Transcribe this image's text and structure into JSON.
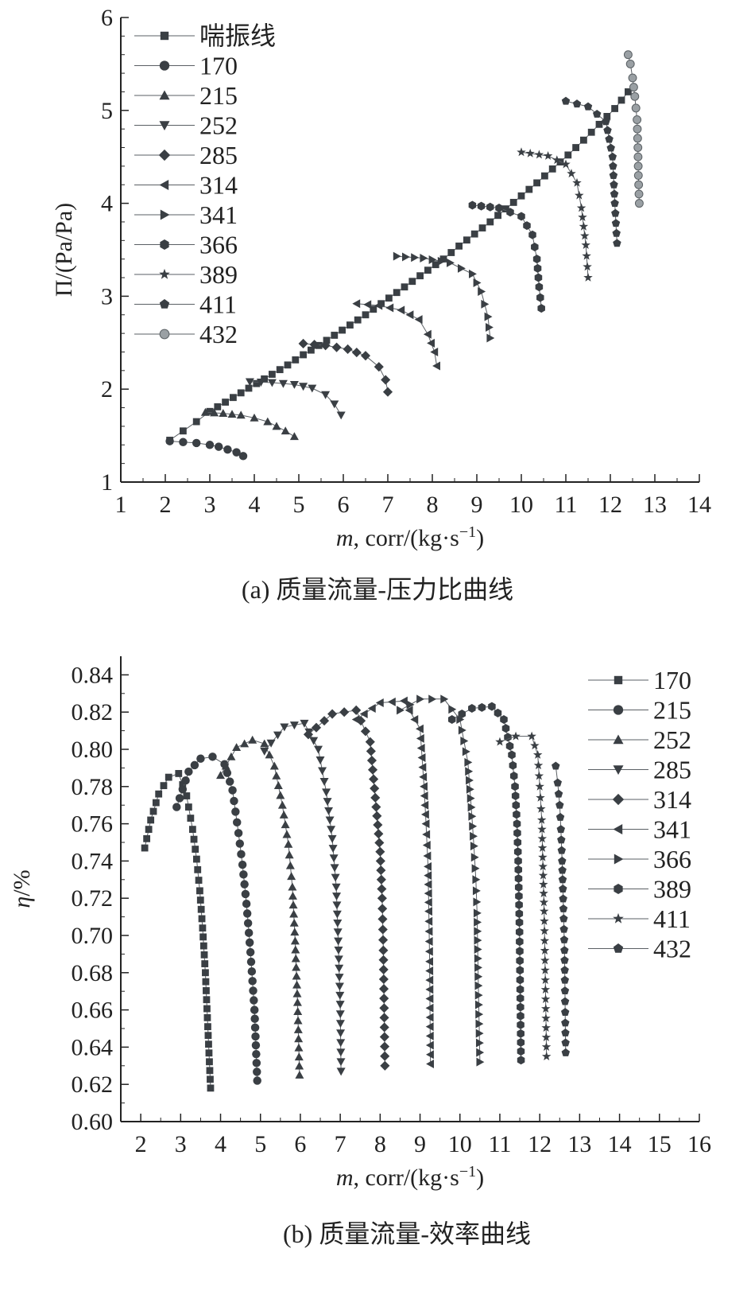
{
  "chart_data": [
    {
      "type": "line",
      "caption": "(a) 质量流量-压力比曲线",
      "xlabel_var": "m",
      "xlabel_rest": ", corr/(kg·s",
      "xlabel_sup": "−1",
      "xlabel_close": ")",
      "ylabel": "Π/(Pa/Pa)",
      "xlim": [
        1,
        14
      ],
      "ylim": [
        1,
        6
      ],
      "xticks": [
        1,
        2,
        3,
        4,
        5,
        6,
        7,
        8,
        9,
        10,
        11,
        12,
        13,
        14
      ],
      "yticks": [
        1,
        2,
        3,
        4,
        5,
        6
      ],
      "legend_position": "top-left",
      "series": [
        {
          "name": "喘振线",
          "marker": "square",
          "color": "#3a3f44",
          "x": [
            2.1,
            2.4,
            2.7,
            3.0,
            3.35,
            3.7,
            4.05,
            4.4,
            4.75,
            5.1,
            5.45,
            5.8,
            6.15,
            6.5,
            6.85,
            7.2,
            7.55,
            7.9,
            8.25,
            8.6,
            8.95,
            9.3,
            9.65,
            10.0,
            10.35,
            10.7,
            11.05,
            11.4,
            11.75,
            12.1,
            12.4
          ],
          "y": [
            1.45,
            1.55,
            1.65,
            1.76,
            1.86,
            1.96,
            2.06,
            2.16,
            2.26,
            2.37,
            2.47,
            2.58,
            2.69,
            2.8,
            2.92,
            3.04,
            3.16,
            3.28,
            3.4,
            3.54,
            3.67,
            3.8,
            3.94,
            4.08,
            4.22,
            4.37,
            4.52,
            4.68,
            4.85,
            5.02,
            5.2
          ]
        },
        {
          "name": "170",
          "marker": "circle",
          "color": "#3a3f44",
          "x": [
            2.1,
            2.4,
            2.7,
            3.0,
            3.2,
            3.4,
            3.6,
            3.75
          ],
          "y": [
            1.44,
            1.43,
            1.42,
            1.4,
            1.38,
            1.35,
            1.32,
            1.28
          ]
        },
        {
          "name": "215",
          "marker": "triangle-up",
          "color": "#3a3f44",
          "x": [
            2.9,
            3.3,
            3.7,
            4.0,
            4.3,
            4.5,
            4.7,
            4.9
          ],
          "y": [
            1.75,
            1.74,
            1.72,
            1.69,
            1.65,
            1.6,
            1.55,
            1.49
          ]
        },
        {
          "name": "252",
          "marker": "triangle-down",
          "color": "#3a3f44",
          "x": [
            3.9,
            4.4,
            4.9,
            5.3,
            5.6,
            5.8,
            5.95
          ],
          "y": [
            2.08,
            2.07,
            2.05,
            2.01,
            1.94,
            1.84,
            1.72
          ]
        },
        {
          "name": "285",
          "marker": "diamond",
          "color": "#3a3f44",
          "x": [
            5.1,
            5.6,
            6.1,
            6.5,
            6.8,
            6.95,
            7.0
          ],
          "y": [
            2.49,
            2.47,
            2.43,
            2.36,
            2.24,
            2.1,
            1.97
          ]
        },
        {
          "name": "314",
          "marker": "triangle-left",
          "color": "#3a3f44",
          "x": [
            6.3,
            6.8,
            7.3,
            7.7,
            7.9,
            8.05,
            8.1
          ],
          "y": [
            2.92,
            2.9,
            2.85,
            2.75,
            2.59,
            2.4,
            2.25
          ]
        },
        {
          "name": "341",
          "marker": "triangle-right",
          "color": "#3a3f44",
          "x": [
            7.2,
            7.8,
            8.4,
            8.9,
            9.1,
            9.25,
            9.3
          ],
          "y": [
            3.43,
            3.41,
            3.36,
            3.24,
            3.05,
            2.78,
            2.55
          ]
        },
        {
          "name": "366",
          "marker": "hexagon",
          "color": "#3a3f44",
          "x": [
            8.9,
            9.5,
            10.0,
            10.25,
            10.35,
            10.4,
            10.45
          ],
          "y": [
            3.98,
            3.95,
            3.86,
            3.66,
            3.4,
            3.1,
            2.87
          ]
        },
        {
          "name": "389",
          "marker": "star",
          "color": "#3a3f44",
          "x": [
            10.0,
            10.6,
            11.0,
            11.25,
            11.35,
            11.45,
            11.5
          ],
          "y": [
            4.55,
            4.51,
            4.42,
            4.22,
            3.95,
            3.55,
            3.2
          ]
        },
        {
          "name": "411",
          "marker": "pentagon",
          "color": "#3a3f44",
          "x": [
            11.0,
            11.5,
            11.9,
            12.05,
            12.1,
            12.15
          ],
          "y": [
            5.1,
            5.04,
            4.88,
            4.5,
            4.0,
            3.57
          ]
        },
        {
          "name": "432",
          "marker": "sphere",
          "color": "#9aa0a4",
          "x": [
            12.4,
            12.45,
            12.5,
            12.55,
            12.6,
            12.62,
            12.63,
            12.65
          ],
          "y": [
            5.6,
            5.5,
            5.35,
            5.15,
            4.9,
            4.6,
            4.3,
            4.0
          ]
        }
      ]
    },
    {
      "type": "line",
      "caption": "(b) 质量流量-效率曲线",
      "xlabel_var": "m",
      "xlabel_rest": ", corr/(kg·s",
      "xlabel_sup": "−1",
      "xlabel_close": ")",
      "ylabel_var": "η",
      "ylabel_rest": "/%",
      "xlim": [
        1.5,
        16
      ],
      "ylim": [
        0.6,
        0.85
      ],
      "xticks": [
        2,
        3,
        4,
        5,
        6,
        7,
        8,
        9,
        10,
        11,
        12,
        13,
        14,
        15,
        16
      ],
      "yticks": [
        0.6,
        0.62,
        0.64,
        0.66,
        0.68,
        0.7,
        0.72,
        0.74,
        0.76,
        0.78,
        0.8,
        0.82,
        0.84
      ],
      "legend_position": "top-right",
      "series": [
        {
          "name": "170",
          "marker": "square",
          "color": "#3a3f44",
          "x": [
            2.1,
            2.25,
            2.45,
            2.7,
            2.95,
            3.15,
            3.3,
            3.4,
            3.48,
            3.55,
            3.62,
            3.68,
            3.75
          ],
          "y": [
            0.747,
            0.762,
            0.776,
            0.785,
            0.787,
            0.775,
            0.757,
            0.741,
            0.724,
            0.704,
            0.68,
            0.651,
            0.618
          ]
        },
        {
          "name": "215",
          "marker": "circle",
          "color": "#3a3f44",
          "x": [
            2.9,
            3.2,
            3.5,
            3.8,
            4.1,
            4.3,
            4.45,
            4.55,
            4.65,
            4.75,
            4.85,
            4.92
          ],
          "y": [
            0.769,
            0.788,
            0.795,
            0.796,
            0.792,
            0.778,
            0.755,
            0.738,
            0.717,
            0.691,
            0.66,
            0.622
          ]
        },
        {
          "name": "252",
          "marker": "triangle-up",
          "color": "#3a3f44",
          "x": [
            4.0,
            4.4,
            4.8,
            5.1,
            5.35,
            5.55,
            5.7,
            5.8,
            5.87,
            5.93,
            5.98
          ],
          "y": [
            0.786,
            0.801,
            0.805,
            0.803,
            0.791,
            0.77,
            0.749,
            0.726,
            0.697,
            0.664,
            0.625
          ]
        },
        {
          "name": "285",
          "marker": "triangle-down",
          "color": "#3a3f44",
          "x": [
            5.1,
            5.6,
            6.1,
            6.45,
            6.65,
            6.8,
            6.9,
            6.95,
            7.0,
            7.02
          ],
          "y": [
            0.799,
            0.812,
            0.814,
            0.8,
            0.777,
            0.752,
            0.726,
            0.697,
            0.663,
            0.627
          ]
        },
        {
          "name": "314",
          "marker": "diamond",
          "color": "#3a3f44",
          "x": [
            6.2,
            6.8,
            7.4,
            7.75,
            7.9,
            8.0,
            8.05,
            8.08,
            8.1,
            8.12
          ],
          "y": [
            0.808,
            0.819,
            0.821,
            0.804,
            0.769,
            0.745,
            0.72,
            0.692,
            0.661,
            0.63
          ]
        },
        {
          "name": "341",
          "marker": "triangle-left",
          "color": "#3a3f44",
          "x": [
            7.4,
            8.0,
            8.6,
            9.0,
            9.1,
            9.15,
            9.2,
            9.22,
            9.24,
            9.26
          ],
          "y": [
            0.816,
            0.825,
            0.826,
            0.811,
            0.78,
            0.76,
            0.737,
            0.713,
            0.686,
            0.631
          ]
        },
        {
          "name": "366",
          "marker": "triangle-right",
          "color": "#3a3f44",
          "x": [
            8.5,
            9.0,
            9.6,
            10.0,
            10.2,
            10.3,
            10.35,
            10.4,
            10.43,
            10.46,
            10.5
          ],
          "y": [
            0.821,
            0.827,
            0.827,
            0.816,
            0.793,
            0.764,
            0.748,
            0.73,
            0.712,
            0.673,
            0.632
          ]
        },
        {
          "name": "389",
          "marker": "hexagon",
          "color": "#3a3f44",
          "x": [
            9.8,
            10.3,
            10.8,
            11.1,
            11.3,
            11.38,
            11.43,
            11.46,
            11.49,
            11.51,
            11.53
          ],
          "y": [
            0.816,
            0.822,
            0.823,
            0.816,
            0.797,
            0.78,
            0.76,
            0.74,
            0.707,
            0.671,
            0.633
          ]
        },
        {
          "name": "411",
          "marker": "star",
          "color": "#3a3f44",
          "x": [
            11.0,
            11.4,
            11.8,
            11.95,
            12.0,
            12.05,
            12.08,
            12.11,
            12.14,
            12.17
          ],
          "y": [
            0.804,
            0.807,
            0.807,
            0.797,
            0.78,
            0.762,
            0.737,
            0.713,
            0.676,
            0.635
          ]
        },
        {
          "name": "432",
          "marker": "pentagon",
          "color": "#3a3f44",
          "x": [
            12.4,
            12.45,
            12.5,
            12.53,
            12.56,
            12.58,
            12.6,
            12.62,
            12.63,
            12.64,
            12.65
          ],
          "y": [
            0.791,
            0.782,
            0.77,
            0.757,
            0.74,
            0.725,
            0.709,
            0.692,
            0.676,
            0.653,
            0.637
          ]
        }
      ]
    }
  ]
}
